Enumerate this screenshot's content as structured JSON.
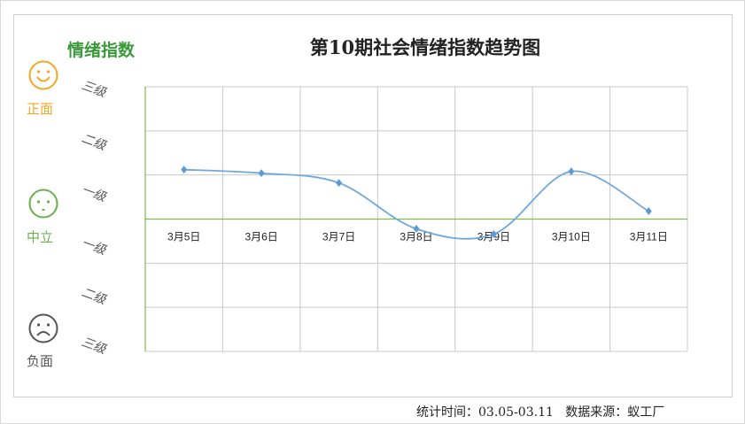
{
  "chart_data": {
    "type": "line",
    "title": "第10期社会情绪指数趋势图",
    "ylabel": "情绪指数",
    "categories": [
      "3月5日",
      "3月6日",
      "3月7日",
      "3月8日",
      "3月9日",
      "3月10日",
      "3月11日"
    ],
    "values": [
      1.12,
      1.04,
      0.82,
      -0.22,
      -0.34,
      1.08,
      0.18
    ],
    "ylim": [
      -3,
      3
    ],
    "y_tick_labels": [
      "三级",
      "二级",
      "一级",
      "一级",
      "二级",
      "三级"
    ],
    "smooth": true,
    "grid": true,
    "series_color": "#6fa8dc",
    "axis_color": "#7dbb4c",
    "grid_color": "#c8c8c8"
  },
  "moods": [
    {
      "label": "正面",
      "icon": "smiley-happy-icon",
      "color": "#f5a623"
    },
    {
      "label": "中立",
      "icon": "smiley-neutral-icon",
      "color": "#6ab04c"
    },
    {
      "label": "负面",
      "icon": "smiley-sad-icon",
      "color": "#555555"
    }
  ],
  "footer": {
    "period_label": "统计时间：03.05-03.11",
    "source_label": "数据来源：蚁工厂"
  }
}
